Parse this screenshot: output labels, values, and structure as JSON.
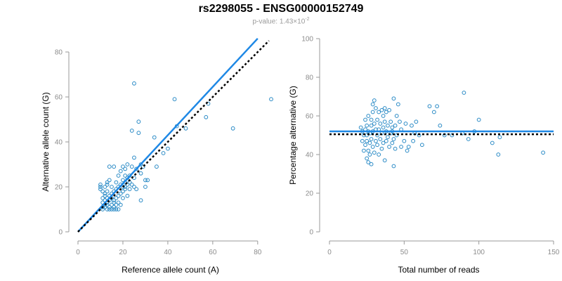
{
  "title": "rs2298055 - ENSG00000152749",
  "subtitle": {
    "prefix": "p-value: 1.43×10",
    "exponent": "-2"
  },
  "colors": {
    "points": "#2b8bc6",
    "fit_line": "#1e88e5",
    "null_line": "#000000"
  },
  "chart_data": [
    {
      "type": "scatter",
      "xlabel": "Reference allele count (A)",
      "ylabel": "Alternative allele count (G)",
      "xlim": [
        0,
        86
      ],
      "ylim": [
        0,
        80
      ],
      "xticks": [
        0,
        20,
        40,
        60,
        80
      ],
      "yticks": [
        0,
        20,
        40,
        60,
        80
      ],
      "grid": false,
      "fit_line": {
        "x": [
          0,
          80
        ],
        "y": [
          0,
          86
        ]
      },
      "null_line": {
        "x": [
          0,
          85
        ],
        "y": [
          0,
          85
        ]
      },
      "points": [
        [
          10,
          20
        ],
        [
          10,
          21
        ],
        [
          10,
          19
        ],
        [
          11,
          18
        ],
        [
          11,
          15
        ],
        [
          11,
          13
        ],
        [
          11,
          11
        ],
        [
          11,
          10
        ],
        [
          12,
          12
        ],
        [
          12,
          14
        ],
        [
          12,
          16
        ],
        [
          12,
          17
        ],
        [
          12,
          20
        ],
        [
          12,
          11
        ],
        [
          13,
          10
        ],
        [
          13,
          13
        ],
        [
          13,
          15
        ],
        [
          13,
          18
        ],
        [
          13,
          21
        ],
        [
          13,
          22
        ],
        [
          13,
          12
        ],
        [
          14,
          11
        ],
        [
          14,
          14
        ],
        [
          14,
          16
        ],
        [
          14,
          23
        ],
        [
          14,
          29
        ],
        [
          14,
          10
        ],
        [
          15,
          12
        ],
        [
          15,
          15
        ],
        [
          15,
          17
        ],
        [
          15,
          20
        ],
        [
          15,
          10
        ],
        [
          16,
          11
        ],
        [
          16,
          13
        ],
        [
          16,
          14
        ],
        [
          16,
          18
        ],
        [
          16,
          29
        ],
        [
          16,
          10
        ],
        [
          17,
          12
        ],
        [
          17,
          15
        ],
        [
          17,
          19
        ],
        [
          17,
          22
        ],
        [
          17,
          10
        ],
        [
          18,
          13
        ],
        [
          18,
          16
        ],
        [
          18,
          20
        ],
        [
          18,
          25
        ],
        [
          18,
          10
        ],
        [
          19,
          17
        ],
        [
          19,
          21
        ],
        [
          19,
          12
        ],
        [
          19,
          27
        ],
        [
          20,
          18
        ],
        [
          20,
          20
        ],
        [
          20,
          23
        ],
        [
          20,
          15
        ],
        [
          20,
          29
        ],
        [
          21,
          19
        ],
        [
          21,
          22
        ],
        [
          21,
          25
        ],
        [
          21,
          20
        ],
        [
          21,
          28
        ],
        [
          22,
          21
        ],
        [
          22,
          24
        ],
        [
          22,
          16
        ],
        [
          22,
          30
        ],
        [
          23,
          22
        ],
        [
          23,
          19
        ],
        [
          23,
          25
        ],
        [
          24,
          21
        ],
        [
          24,
          29
        ],
        [
          24,
          45
        ],
        [
          25,
          20
        ],
        [
          25,
          24
        ],
        [
          25,
          33
        ],
        [
          25,
          66
        ],
        [
          26,
          19
        ],
        [
          26,
          28
        ],
        [
          27,
          49
        ],
        [
          27,
          44
        ],
        [
          28,
          26
        ],
        [
          28,
          14
        ],
        [
          28,
          30
        ],
        [
          29,
          29
        ],
        [
          30,
          23
        ],
        [
          30,
          20
        ],
        [
          31,
          23
        ],
        [
          34,
          42
        ],
        [
          35,
          29
        ],
        [
          38,
          35
        ],
        [
          40,
          37
        ],
        [
          43,
          59
        ],
        [
          44,
          47
        ],
        [
          48,
          46
        ],
        [
          57,
          51
        ],
        [
          58,
          57
        ],
        [
          69,
          46
        ],
        [
          86,
          59
        ]
      ]
    },
    {
      "type": "scatter",
      "xlabel": "Total number of reads",
      "ylabel": "Percentage alternative (G)",
      "xlim": [
        0,
        150
      ],
      "ylim": [
        0,
        100
      ],
      "xticks": [
        0,
        50,
        100,
        150
      ],
      "yticks": [
        0,
        20,
        40,
        60,
        80,
        100
      ],
      "grid": false,
      "fit_line": {
        "x": [
          0,
          150
        ],
        "y": [
          52,
          52
        ]
      },
      "null_line": {
        "x": [
          0,
          150
        ],
        "y": [
          50.5,
          50.5
        ]
      },
      "points": [
        [
          21,
          54
        ],
        [
          22,
          47
        ],
        [
          22,
          52
        ],
        [
          23,
          50
        ],
        [
          23,
          42
        ],
        [
          24,
          53
        ],
        [
          24,
          58
        ],
        [
          24,
          45
        ],
        [
          25,
          38
        ],
        [
          25,
          47
        ],
        [
          25,
          50
        ],
        [
          25,
          55
        ],
        [
          26,
          36
        ],
        [
          26,
          42
        ],
        [
          26,
          52
        ],
        [
          26,
          60
        ],
        [
          27,
          46
        ],
        [
          27,
          51
        ],
        [
          27,
          40
        ],
        [
          28,
          55
        ],
        [
          28,
          58
        ],
        [
          28,
          35
        ],
        [
          28,
          48
        ],
        [
          29,
          62
        ],
        [
          29,
          66
        ],
        [
          29,
          52
        ],
        [
          29,
          44
        ],
        [
          30,
          68
        ],
        [
          30,
          56
        ],
        [
          30,
          41
        ],
        [
          31,
          53
        ],
        [
          31,
          47
        ],
        [
          31,
          64
        ],
        [
          32,
          58
        ],
        [
          32,
          50
        ],
        [
          32,
          45
        ],
        [
          33,
          53
        ],
        [
          33,
          62
        ],
        [
          33,
          40
        ],
        [
          34,
          56
        ],
        [
          34,
          48
        ],
        [
          35,
          63
        ],
        [
          35,
          51
        ],
        [
          35,
          43
        ],
        [
          36,
          60
        ],
        [
          36,
          54
        ],
        [
          36,
          46
        ],
        [
          37,
          64
        ],
        [
          37,
          57
        ],
        [
          37,
          37
        ],
        [
          38,
          52
        ],
        [
          38,
          62
        ],
        [
          38,
          47
        ],
        [
          39,
          55
        ],
        [
          39,
          49
        ],
        [
          40,
          63
        ],
        [
          40,
          44
        ],
        [
          41,
          57
        ],
        [
          41,
          51
        ],
        [
          42,
          46
        ],
        [
          42,
          52
        ],
        [
          42,
          54
        ],
        [
          43,
          69
        ],
        [
          43,
          34
        ],
        [
          43,
          48
        ],
        [
          44,
          55
        ],
        [
          44,
          43
        ],
        [
          45,
          60
        ],
        [
          45,
          50
        ],
        [
          46,
          66
        ],
        [
          47,
          57
        ],
        [
          48,
          44
        ],
        [
          48,
          53
        ],
        [
          50,
          47
        ],
        [
          51,
          56
        ],
        [
          52,
          42
        ],
        [
          53,
          44
        ],
        [
          55,
          55
        ],
        [
          56,
          47
        ],
        [
          57,
          51
        ],
        [
          58,
          57
        ],
        [
          60,
          50
        ],
        [
          62,
          45
        ],
        [
          67,
          65
        ],
        [
          70,
          62
        ],
        [
          72,
          65
        ],
        [
          74,
          55
        ],
        [
          77,
          50
        ],
        [
          82,
          50
        ],
        [
          89,
          51
        ],
        [
          90,
          72
        ],
        [
          93,
          48
        ],
        [
          97,
          52
        ],
        [
          100,
          58
        ],
        [
          109,
          46
        ],
        [
          113,
          40
        ],
        [
          114,
          49
        ],
        [
          143,
          41
        ]
      ]
    }
  ]
}
